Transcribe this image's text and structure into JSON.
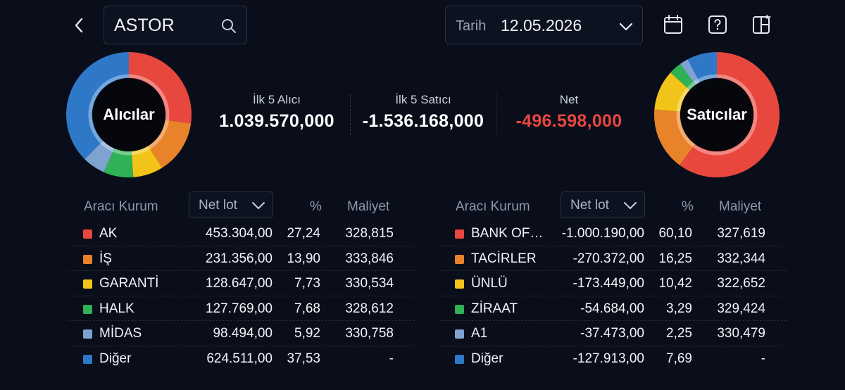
{
  "search": {
    "value": "ASTOR"
  },
  "date": {
    "label": "Tarih",
    "value": "12.05.2026"
  },
  "icons": {
    "back": "chevron-left-icon",
    "search": "search-icon",
    "date_dropdown": "chevron-down-icon",
    "calendar": "calendar-icon",
    "help": "help-icon",
    "layout": "layout-icon"
  },
  "colors": {
    "red": "#e8473e",
    "orange": "#e8832a",
    "yellow": "#f2c318",
    "green": "#2fb155",
    "lightblue": "#7fa3d1",
    "blue": "#2f78c8",
    "negative": "#e8473e"
  },
  "buyers_donut": {
    "label": "Alıcılar",
    "slices": [
      {
        "name": "AK",
        "percent": 27.24,
        "color": "#e8473e"
      },
      {
        "name": "İŞ",
        "percent": 13.9,
        "color": "#e8832a"
      },
      {
        "name": "GARANTİ",
        "percent": 7.73,
        "color": "#f2c318"
      },
      {
        "name": "HALK",
        "percent": 7.68,
        "color": "#2fb155"
      },
      {
        "name": "MİDAS",
        "percent": 5.92,
        "color": "#7fa3d1"
      },
      {
        "name": "Diğer",
        "percent": 37.53,
        "color": "#2f78c8"
      }
    ]
  },
  "sellers_donut": {
    "label": "Satıcılar",
    "slices": [
      {
        "name": "BANK OF…",
        "percent": 60.1,
        "color": "#e8473e"
      },
      {
        "name": "TACİRLER",
        "percent": 16.25,
        "color": "#e8832a"
      },
      {
        "name": "ÜNLÜ",
        "percent": 10.42,
        "color": "#f2c318"
      },
      {
        "name": "ZİRAAT",
        "percent": 3.29,
        "color": "#2fb155"
      },
      {
        "name": "A1",
        "percent": 2.25,
        "color": "#7fa3d1"
      },
      {
        "name": "Diğer",
        "percent": 7.69,
        "color": "#2f78c8"
      }
    ]
  },
  "summary": {
    "top5_buyers": {
      "label": "İlk 5 Alıcı",
      "value": "1.039.570,000"
    },
    "top5_sellers": {
      "label": "İlk 5 Satıcı",
      "value": "-1.536.168,000"
    },
    "net": {
      "label": "Net",
      "value": "-496.598,000"
    }
  },
  "buyers_table": {
    "headers": {
      "broker": "Aracı Kurum",
      "sort": "Net lot",
      "pct": "%",
      "cost": "Maliyet"
    },
    "rows": [
      {
        "name": "AK",
        "lot": "453.304,00",
        "pct": "27,24",
        "cost": "328,815",
        "color": "#e8473e"
      },
      {
        "name": "İŞ",
        "lot": "231.356,00",
        "pct": "13,90",
        "cost": "333,846",
        "color": "#e8832a"
      },
      {
        "name": "GARANTİ",
        "lot": "128.647,00",
        "pct": "7,73",
        "cost": "330,534",
        "color": "#f2c318"
      },
      {
        "name": "HALK",
        "lot": "127.769,00",
        "pct": "7,68",
        "cost": "328,612",
        "color": "#2fb155"
      },
      {
        "name": "MİDAS",
        "lot": "98.494,00",
        "pct": "5,92",
        "cost": "330,758",
        "color": "#7fa3d1"
      },
      {
        "name": "Diğer",
        "lot": "624.511,00",
        "pct": "37,53",
        "cost": "-",
        "color": "#2f78c8"
      }
    ]
  },
  "sellers_table": {
    "headers": {
      "broker": "Aracı Kurum",
      "sort": "Net lot",
      "pct": "%",
      "cost": "Maliyet"
    },
    "rows": [
      {
        "name": "BANK OF…",
        "lot": "-1.000.190,00",
        "pct": "60,10",
        "cost": "327,619",
        "color": "#e8473e"
      },
      {
        "name": "TACİRLER",
        "lot": "-270.372,00",
        "pct": "16,25",
        "cost": "332,344",
        "color": "#e8832a"
      },
      {
        "name": "ÜNLÜ",
        "lot": "-173.449,00",
        "pct": "10,42",
        "cost": "322,652",
        "color": "#f2c318"
      },
      {
        "name": "ZİRAAT",
        "lot": "-54.684,00",
        "pct": "3,29",
        "cost": "329,424",
        "color": "#2fb155"
      },
      {
        "name": "A1",
        "lot": "-37.473,00",
        "pct": "2,25",
        "cost": "330,479",
        "color": "#7fa3d1"
      },
      {
        "name": "Diğer",
        "lot": "-127.913,00",
        "pct": "7,69",
        "cost": "-",
        "color": "#2f78c8"
      }
    ]
  }
}
